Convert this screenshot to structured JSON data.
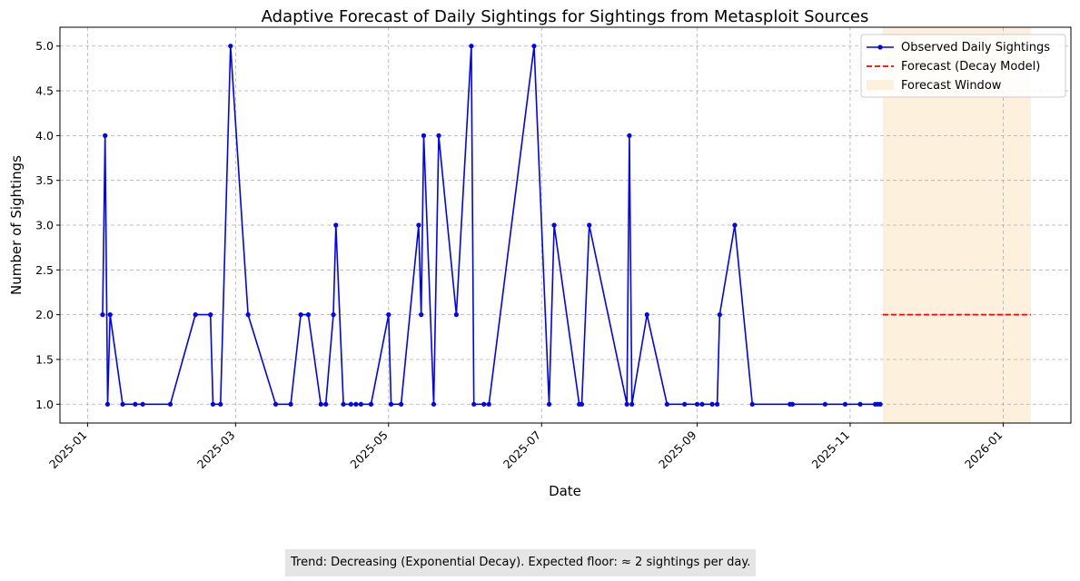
{
  "chart_data": {
    "type": "line",
    "title": "Adaptive Forecast of Daily Sightings for Sightings from Metasploit Sources",
    "xlabel": "Date",
    "ylabel": "Number of Sightings",
    "xlim": [
      "2024-12-21",
      "2026-01-28"
    ],
    "ylim": [
      0.79,
      5.21
    ],
    "grid": true,
    "legend_position": "top-right",
    "x_ticks": [
      "2025-01",
      "2025-03",
      "2025-05",
      "2025-07",
      "2025-09",
      "2025-11",
      "2026-01"
    ],
    "y_ticks": [
      "1.0",
      "1.5",
      "2.0",
      "2.5",
      "3.0",
      "3.5",
      "4.0",
      "4.5",
      "5.0"
    ],
    "series": [
      {
        "name": "Observed Daily Sightings",
        "color": "#0000ff",
        "points": [
          [
            "2025-01-07",
            2
          ],
          [
            "2025-01-08",
            4
          ],
          [
            "2025-01-09",
            1
          ],
          [
            "2025-01-10",
            2
          ],
          [
            "2025-01-15",
            1
          ],
          [
            "2025-01-20",
            1
          ],
          [
            "2025-01-23",
            1
          ],
          [
            "2025-02-03",
            1
          ],
          [
            "2025-02-13",
            2
          ],
          [
            "2025-02-19",
            2
          ],
          [
            "2025-02-20",
            1
          ],
          [
            "2025-02-23",
            1
          ],
          [
            "2025-02-27",
            5
          ],
          [
            "2025-03-06",
            2
          ],
          [
            "2025-03-17",
            1
          ],
          [
            "2025-03-23",
            1
          ],
          [
            "2025-03-27",
            2
          ],
          [
            "2025-03-30",
            2
          ],
          [
            "2025-04-04",
            1
          ],
          [
            "2025-04-06",
            1
          ],
          [
            "2025-04-09",
            2
          ],
          [
            "2025-04-10",
            3
          ],
          [
            "2025-04-13",
            1
          ],
          [
            "2025-04-16",
            1
          ],
          [
            "2025-04-18",
            1
          ],
          [
            "2025-04-20",
            1
          ],
          [
            "2025-04-24",
            1
          ],
          [
            "2025-05-01",
            2
          ],
          [
            "2025-05-02",
            1
          ],
          [
            "2025-05-06",
            1
          ],
          [
            "2025-05-13",
            3
          ],
          [
            "2025-05-14",
            2
          ],
          [
            "2025-05-15",
            4
          ],
          [
            "2025-05-19",
            1
          ],
          [
            "2025-05-21",
            4
          ],
          [
            "2025-05-28",
            2
          ],
          [
            "2025-06-03",
            5
          ],
          [
            "2025-06-04",
            1
          ],
          [
            "2025-06-08",
            1
          ],
          [
            "2025-06-10",
            1
          ],
          [
            "2025-06-28",
            5
          ],
          [
            "2025-07-04",
            1
          ],
          [
            "2025-07-06",
            3
          ],
          [
            "2025-07-16",
            1
          ],
          [
            "2025-07-17",
            1
          ],
          [
            "2025-07-20",
            3
          ],
          [
            "2025-08-04",
            1
          ],
          [
            "2025-08-05",
            4
          ],
          [
            "2025-08-06",
            1
          ],
          [
            "2025-08-12",
            2
          ],
          [
            "2025-08-20",
            1
          ],
          [
            "2025-08-27",
            1
          ],
          [
            "2025-09-01",
            1
          ],
          [
            "2025-09-03",
            1
          ],
          [
            "2025-09-07",
            1
          ],
          [
            "2025-09-09",
            1
          ],
          [
            "2025-09-10",
            2
          ],
          [
            "2025-09-16",
            3
          ],
          [
            "2025-09-23",
            1
          ],
          [
            "2025-10-08",
            1
          ],
          [
            "2025-10-09",
            1
          ],
          [
            "2025-10-22",
            1
          ],
          [
            "2025-10-30",
            1
          ],
          [
            "2025-11-05",
            1
          ],
          [
            "2025-11-11",
            1
          ],
          [
            "2025-11-12",
            1
          ],
          [
            "2025-11-13",
            1
          ]
        ]
      },
      {
        "name": "Forecast (Decay Model)",
        "color": "#ff0000",
        "points": [
          [
            "2025-11-14",
            2
          ],
          [
            "2026-01-12",
            2
          ]
        ]
      }
    ],
    "forecast_window": {
      "name": "Forecast Window",
      "color": "#fdf0dc",
      "start": "2025-11-14",
      "end": "2026-01-12"
    }
  },
  "annotation": {
    "trend_text": "Trend: Decreasing (Exponential Decay). Expected floor: ≈ 2 sightings per day."
  }
}
